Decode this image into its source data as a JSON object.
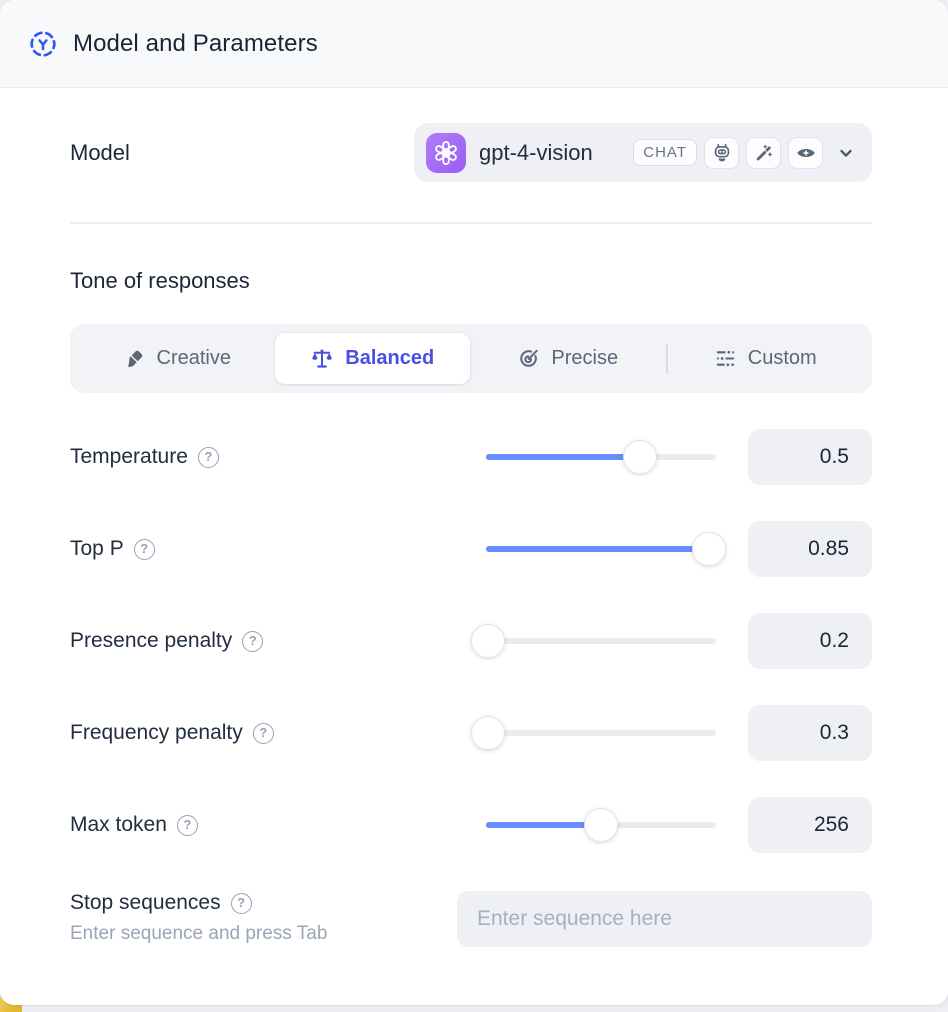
{
  "header": {
    "title": "Model and Parameters"
  },
  "model_row": {
    "label": "Model",
    "selected_model": "gpt-4-vision",
    "type_badge": "CHAT",
    "capability_icons": [
      "robot-icon",
      "magic-wand-icon",
      "vision-eye-icon"
    ]
  },
  "tone": {
    "heading": "Tone of responses",
    "tabs": [
      {
        "label": "Creative",
        "icon": "paintbrush-icon",
        "selected": false
      },
      {
        "label": "Balanced",
        "icon": "balance-scale-icon",
        "selected": true
      },
      {
        "label": "Precise",
        "icon": "target-arrow-icon",
        "selected": false
      },
      {
        "label": "Custom",
        "icon": "sliders-icon",
        "selected": false
      }
    ]
  },
  "parameters": [
    {
      "label": "Temperature",
      "value": "0.5",
      "slider_percent": 67
    },
    {
      "label": "Top P",
      "value": "0.85",
      "slider_percent": 97
    },
    {
      "label": "Presence penalty",
      "value": "0.2",
      "slider_percent": 1
    },
    {
      "label": "Frequency penalty",
      "value": "0.3",
      "slider_percent": 1
    },
    {
      "label": "Max token",
      "value": "256",
      "slider_percent": 50
    }
  ],
  "stop_sequences": {
    "label": "Stop sequences",
    "helper": "Enter sequence and press Tab",
    "placeholder": "Enter sequence here"
  },
  "icons": {
    "header": "dashed-circle-model-icon",
    "help": "question-mark-circle",
    "dropdown": "chevron-down"
  },
  "colors": {
    "accent_blue": "#2d5bf0",
    "slider_blue": "#6a8bfb",
    "selected_tab_text": "#4a4fe4",
    "logo_purple": "#9a5cf4",
    "header_bg": "#f8f9fb",
    "control_bg": "#eef0f5",
    "slate_text": "#5c6779"
  }
}
